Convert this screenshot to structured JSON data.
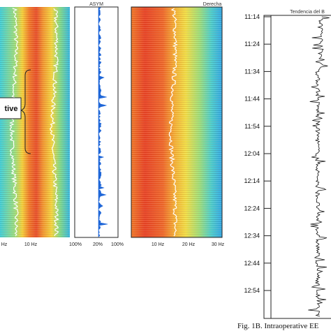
{
  "panels": {
    "left": {
      "label": "tive",
      "x_ticks": [
        "Hz",
        "10 Hz"
      ]
    },
    "asym": {
      "title": "ASYM",
      "x_ticks": [
        "100%",
        "20%",
        "100%"
      ]
    },
    "right": {
      "title": "Derecha",
      "x_ticks": [
        "10 Hz",
        "20 Hz",
        "30 Hz"
      ]
    },
    "trend": {
      "title": "Tendencia del B",
      "time_labels": [
        "11:14",
        "11:24",
        "11:34",
        "11:44",
        "11:54",
        "12:04",
        "12:14",
        "12:24",
        "12:34",
        "12:44",
        "12:54"
      ]
    }
  },
  "caption": "Fig. 1B. Intraoperative EE"
}
